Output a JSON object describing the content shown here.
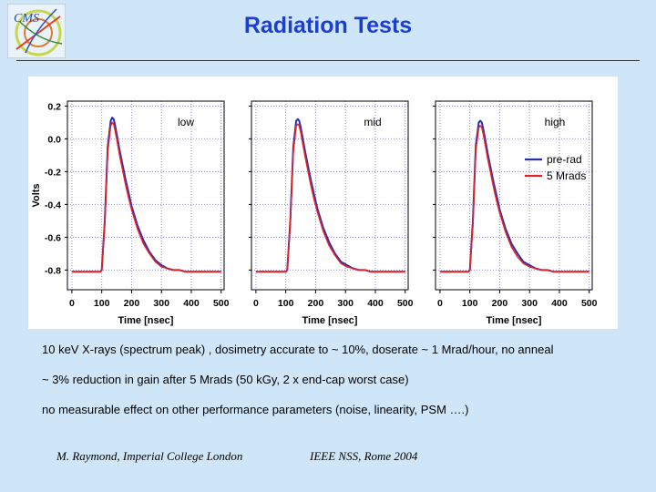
{
  "slide": {
    "title": "Radiation Tests",
    "logo_text": "CMS",
    "bullets": [
      "10 keV X-rays (spectrum peak) , dosimetry accurate to ~ 10%, doserate ~ 1 Mrad/hour, no anneal",
      "~ 3% reduction in gain after 5 Mrads (50 kGy, 2 x end-cap worst case)",
      "no measurable effect on other performance parameters (noise, linearity, PSM ….)"
    ],
    "footer_left": "M. Raymond, Imperial College London",
    "footer_right": "IEEE NSS, Rome 2004"
  },
  "colors": {
    "title": "#1d3fd0",
    "background": "#cfe6f8",
    "pre_rad": "#2b2fa8",
    "post_rad": "#e0242a",
    "grid": "#8a8acf"
  },
  "chart_data": {
    "type": "line",
    "ylabel": "Volts",
    "ylim": [
      -0.92,
      0.23
    ],
    "yticks": [
      "0.2",
      "0.0",
      "-0.2",
      "-0.4",
      "-0.6",
      "-0.8"
    ],
    "grid": true,
    "legend": {
      "placement": "top-right of third panel",
      "entries": [
        "pre-rad",
        "5 Mrads"
      ]
    },
    "panels": [
      {
        "label": "low",
        "xlabel": "Time [nsec]",
        "xlim": [
          -15,
          510
        ],
        "xticks": [
          "0",
          "100",
          "200",
          "300",
          "400",
          "500"
        ],
        "series": [
          {
            "name": "pre-rad",
            "x": [
              0,
              85,
              96,
              100,
              110,
              120,
              130,
              135,
              140,
              145,
              150,
              160,
              170,
              180,
              190,
              200,
              220,
              240,
              260,
              280,
              300,
              320,
              340,
              360,
              380,
              400,
              420,
              440,
              460,
              480,
              500
            ],
            "y": [
              -0.81,
              -0.81,
              -0.81,
              -0.8,
              -0.5,
              -0.05,
              0.11,
              0.13,
              0.12,
              0.08,
              0.03,
              -0.07,
              -0.16,
              -0.25,
              -0.33,
              -0.41,
              -0.53,
              -0.62,
              -0.69,
              -0.74,
              -0.77,
              -0.79,
              -0.8,
              -0.8,
              -0.81,
              -0.81,
              -0.81,
              -0.81,
              -0.81,
              -0.81,
              -0.81
            ]
          },
          {
            "name": "5 Mrads",
            "x": [
              0,
              85,
              96,
              100,
              110,
              120,
              130,
              135,
              140,
              145,
              150,
              160,
              170,
              180,
              190,
              200,
              220,
              240,
              260,
              280,
              300,
              320,
              340,
              360,
              380,
              400,
              420,
              440,
              460,
              480,
              500
            ],
            "y": [
              -0.81,
              -0.81,
              -0.81,
              -0.8,
              -0.52,
              -0.08,
              0.08,
              0.1,
              0.09,
              0.05,
              0.0,
              -0.1,
              -0.19,
              -0.28,
              -0.36,
              -0.43,
              -0.55,
              -0.64,
              -0.7,
              -0.75,
              -0.78,
              -0.79,
              -0.8,
              -0.8,
              -0.81,
              -0.81,
              -0.81,
              -0.81,
              -0.81,
              -0.81,
              -0.81
            ]
          }
        ]
      },
      {
        "label": "mid",
        "xlabel": "Time [nsec]",
        "xlim": [
          -15,
          510
        ],
        "xticks": [
          "0",
          "100",
          "200",
          "300",
          "400",
          "500"
        ],
        "series": [
          {
            "name": "pre-rad",
            "x": [
              0,
              90,
              100,
              105,
              115,
              125,
              135,
              140,
              145,
              150,
              155,
              165,
              175,
              185,
              195,
              205,
              225,
              245,
              265,
              285,
              305,
              325,
              345,
              365,
              385,
              405,
              425,
              445,
              465,
              485,
              500
            ],
            "y": [
              -0.81,
              -0.81,
              -0.81,
              -0.8,
              -0.5,
              -0.05,
              0.11,
              0.12,
              0.11,
              0.07,
              0.02,
              -0.08,
              -0.17,
              -0.26,
              -0.34,
              -0.42,
              -0.54,
              -0.63,
              -0.7,
              -0.75,
              -0.77,
              -0.79,
              -0.8,
              -0.8,
              -0.81,
              -0.81,
              -0.81,
              -0.81,
              -0.81,
              -0.81,
              -0.81
            ]
          },
          {
            "name": "5 Mrads",
            "x": [
              0,
              90,
              100,
              105,
              115,
              125,
              135,
              140,
              145,
              150,
              155,
              165,
              175,
              185,
              195,
              205,
              225,
              245,
              265,
              285,
              305,
              325,
              345,
              365,
              385,
              405,
              425,
              445,
              465,
              485,
              500
            ],
            "y": [
              -0.81,
              -0.81,
              -0.81,
              -0.8,
              -0.52,
              -0.08,
              0.08,
              0.09,
              0.08,
              0.04,
              -0.01,
              -0.11,
              -0.2,
              -0.29,
              -0.37,
              -0.44,
              -0.56,
              -0.65,
              -0.71,
              -0.76,
              -0.78,
              -0.79,
              -0.8,
              -0.8,
              -0.81,
              -0.81,
              -0.81,
              -0.81,
              -0.81,
              -0.81,
              -0.81
            ]
          }
        ]
      },
      {
        "label": "high",
        "xlabel": "Time [nsec]",
        "xlim": [
          -15,
          510
        ],
        "xticks": [
          "0",
          "100",
          "200",
          "300",
          "400",
          "500"
        ],
        "series": [
          {
            "name": "pre-rad",
            "x": [
              0,
              85,
              96,
              100,
              110,
              120,
              130,
              135,
              140,
              145,
              150,
              160,
              170,
              180,
              190,
              200,
              220,
              240,
              260,
              280,
              300,
              320,
              340,
              360,
              380,
              400,
              420,
              440,
              460,
              480,
              500
            ],
            "y": [
              -0.81,
              -0.81,
              -0.81,
              -0.8,
              -0.5,
              -0.04,
              0.1,
              0.11,
              0.1,
              0.06,
              0.01,
              -0.09,
              -0.18,
              -0.27,
              -0.35,
              -0.43,
              -0.55,
              -0.64,
              -0.7,
              -0.75,
              -0.77,
              -0.79,
              -0.8,
              -0.8,
              -0.81,
              -0.81,
              -0.81,
              -0.81,
              -0.81,
              -0.81,
              -0.81
            ]
          },
          {
            "name": "5 Mrads",
            "x": [
              0,
              85,
              96,
              100,
              110,
              120,
              130,
              135,
              140,
              145,
              150,
              160,
              170,
              180,
              190,
              200,
              220,
              240,
              260,
              280,
              300,
              320,
              340,
              360,
              380,
              400,
              420,
              440,
              460,
              480,
              500
            ],
            "y": [
              -0.81,
              -0.81,
              -0.81,
              -0.8,
              -0.53,
              -0.07,
              0.07,
              0.08,
              0.07,
              0.03,
              -0.02,
              -0.12,
              -0.21,
              -0.3,
              -0.38,
              -0.45,
              -0.57,
              -0.66,
              -0.72,
              -0.76,
              -0.78,
              -0.79,
              -0.8,
              -0.8,
              -0.81,
              -0.81,
              -0.81,
              -0.81,
              -0.81,
              -0.81,
              -0.81
            ]
          }
        ]
      }
    ]
  }
}
